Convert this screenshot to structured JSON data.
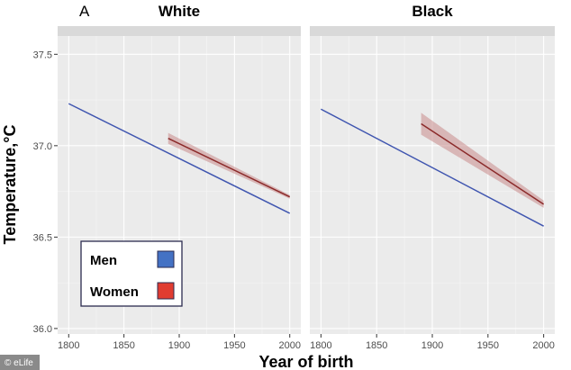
{
  "panel_letter": "A",
  "credit": "© eLife",
  "legend": {
    "items": [
      {
        "label": "Men",
        "color": "#4472c4"
      },
      {
        "label": "Women",
        "color": "#e03c31"
      }
    ]
  },
  "chart_data": {
    "type": "line",
    "xlabel": "Year of birth",
    "ylabel": "Temperature,°C",
    "xlim": [
      1790,
      2010
    ],
    "ylim": [
      35.97,
      37.6
    ],
    "x_ticks": [
      1800,
      1850,
      1900,
      1950,
      2000
    ],
    "y_ticks": [
      36.0,
      36.5,
      37.0,
      37.5
    ],
    "x_tick_labels": [
      "1800",
      "1850",
      "1900",
      "1950",
      "2000"
    ],
    "y_tick_labels": [
      "36.0",
      "36.5",
      "37.0",
      "37.5"
    ],
    "grid": true,
    "legend_position": "bottom-left",
    "facets": [
      {
        "title": "White",
        "series": [
          {
            "name": "Men",
            "color": "#4056b0",
            "x": [
              1800,
              2000
            ],
            "y": [
              37.23,
              36.63
            ]
          },
          {
            "name": "Women",
            "color": "#8b2a2a",
            "ribbon_color": "#c98a8a",
            "x": [
              1890,
              2000
            ],
            "y": [
              37.04,
              36.72
            ],
            "ci_halfwidth": [
              0.03,
              0.01
            ]
          }
        ]
      },
      {
        "title": "Black",
        "series": [
          {
            "name": "Men",
            "color": "#4056b0",
            "x": [
              1800,
              2000
            ],
            "y": [
              37.2,
              36.56
            ]
          },
          {
            "name": "Women",
            "color": "#8b2a2a",
            "ribbon_color": "#c98a8a",
            "x": [
              1890,
              2000
            ],
            "y": [
              37.12,
              36.68
            ],
            "ci_halfwidth": [
              0.06,
              0.02
            ]
          }
        ]
      }
    ]
  }
}
